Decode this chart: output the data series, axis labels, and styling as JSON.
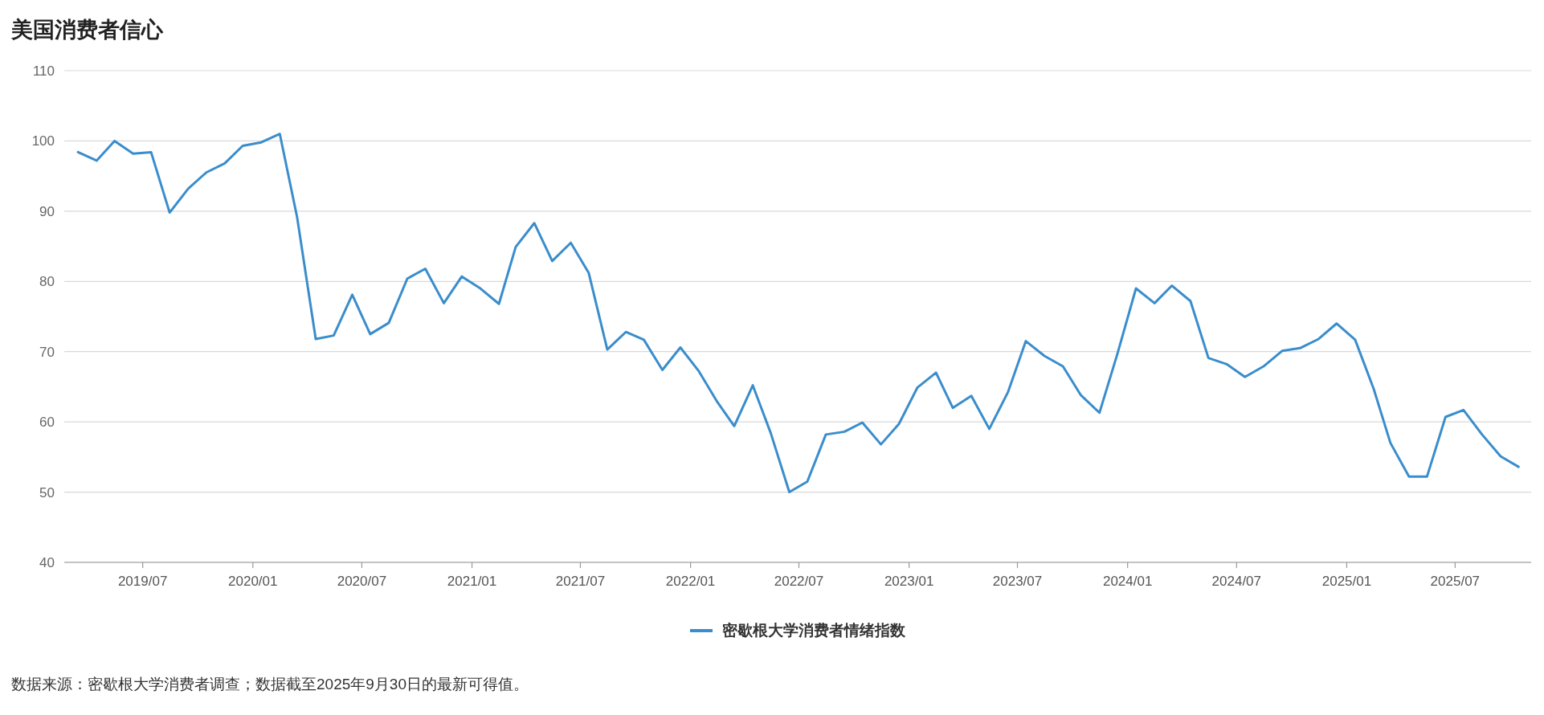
{
  "chart_data": {
    "type": "line",
    "title": "美国消费者信心",
    "x": [
      "2019-03-15",
      "2019-04-15",
      "2019-05-15",
      "2019-06-15",
      "2019-07-15",
      "2019-08-15",
      "2019-09-15",
      "2019-10-15",
      "2019-11-15",
      "2019-12-15",
      "2020-01-15",
      "2020-02-15",
      "2020-03-15",
      "2020-04-15",
      "2020-05-15",
      "2020-06-15",
      "2020-07-15",
      "2020-08-15",
      "2020-09-15",
      "2020-10-15",
      "2020-11-15",
      "2020-12-15",
      "2021-01-15",
      "2021-02-15",
      "2021-03-15",
      "2021-04-15",
      "2021-05-15",
      "2021-06-15",
      "2021-07-15",
      "2021-08-15",
      "2021-09-15",
      "2021-10-15",
      "2021-11-15",
      "2021-12-15",
      "2022-01-15",
      "2022-02-15",
      "2022-03-15",
      "2022-04-15",
      "2022-05-15",
      "2022-06-15",
      "2022-07-15",
      "2022-08-15",
      "2022-09-15",
      "2022-10-15",
      "2022-11-15",
      "2022-12-15",
      "2023-01-15",
      "2023-02-15",
      "2023-03-15",
      "2023-04-15",
      "2023-05-15",
      "2023-06-15",
      "2023-07-15",
      "2023-08-15",
      "2023-09-15",
      "2023-10-15",
      "2023-11-15",
      "2023-12-15",
      "2024-01-15",
      "2024-02-15",
      "2024-03-15",
      "2024-04-15",
      "2024-05-15",
      "2024-06-15",
      "2024-07-15",
      "2024-08-15",
      "2024-09-15",
      "2024-10-15",
      "2024-11-15",
      "2024-12-15",
      "2025-01-15",
      "2025-02-15",
      "2025-03-15",
      "2025-04-15",
      "2025-05-15",
      "2025-06-15",
      "2025-07-15",
      "2025-08-15",
      "2025-09-15",
      "2025-10-15"
    ],
    "series": [
      {
        "name": "密歇根大学消费者情绪指数",
        "color": "#3a8dcc",
        "values": [
          98.4,
          97.2,
          100.0,
          98.2,
          98.4,
          89.8,
          93.2,
          95.5,
          96.8,
          99.3,
          99.8,
          101.0,
          89.1,
          71.8,
          72.3,
          78.1,
          72.5,
          74.1,
          80.4,
          81.8,
          76.9,
          80.7,
          79.0,
          76.8,
          84.9,
          88.3,
          82.9,
          85.5,
          81.2,
          70.3,
          72.8,
          71.7,
          67.4,
          70.6,
          67.2,
          62.8,
          59.4,
          65.2,
          58.4,
          50.0,
          51.5,
          58.2,
          58.6,
          59.9,
          56.8,
          59.7,
          64.9,
          67.0,
          62.0,
          63.7,
          59.0,
          64.2,
          71.5,
          69.4,
          67.9,
          63.8,
          61.3,
          69.7,
          79.0,
          76.9,
          79.4,
          77.2,
          69.1,
          68.2,
          66.4,
          67.9,
          70.1,
          70.5,
          71.8,
          74.0,
          71.7,
          64.7,
          57.0,
          52.2,
          52.2,
          60.7,
          61.7,
          58.2,
          55.1,
          53.6
        ]
      }
    ],
    "xlim": [
      "2019-02-20",
      "2025-11-05"
    ],
    "xticks": [
      {
        "value": "2019-07",
        "label": "2019/07"
      },
      {
        "value": "2020-01",
        "label": "2020/01"
      },
      {
        "value": "2020-07",
        "label": "2020/07"
      },
      {
        "value": "2021-01",
        "label": "2021/01"
      },
      {
        "value": "2021-07",
        "label": "2021/07"
      },
      {
        "value": "2022-01",
        "label": "2022/01"
      },
      {
        "value": "2022-07",
        "label": "2022/07"
      },
      {
        "value": "2023-01",
        "label": "2023/01"
      },
      {
        "value": "2023-07",
        "label": "2023/07"
      },
      {
        "value": "2024-01",
        "label": "2024/01"
      },
      {
        "value": "2024-07",
        "label": "2024/07"
      },
      {
        "value": "2025-01",
        "label": "2025/01"
      },
      {
        "value": "2025-07",
        "label": "2025/07"
      }
    ],
    "ylim": [
      40,
      110
    ],
    "yticks": [
      40,
      50,
      60,
      70,
      80,
      90,
      100,
      110
    ],
    "grid": "y",
    "legend": "bottom",
    "annotations": [
      "数据来源：密歇根大学消费者调查；数据截至2025年9月30日的最新可得值。"
    ]
  }
}
